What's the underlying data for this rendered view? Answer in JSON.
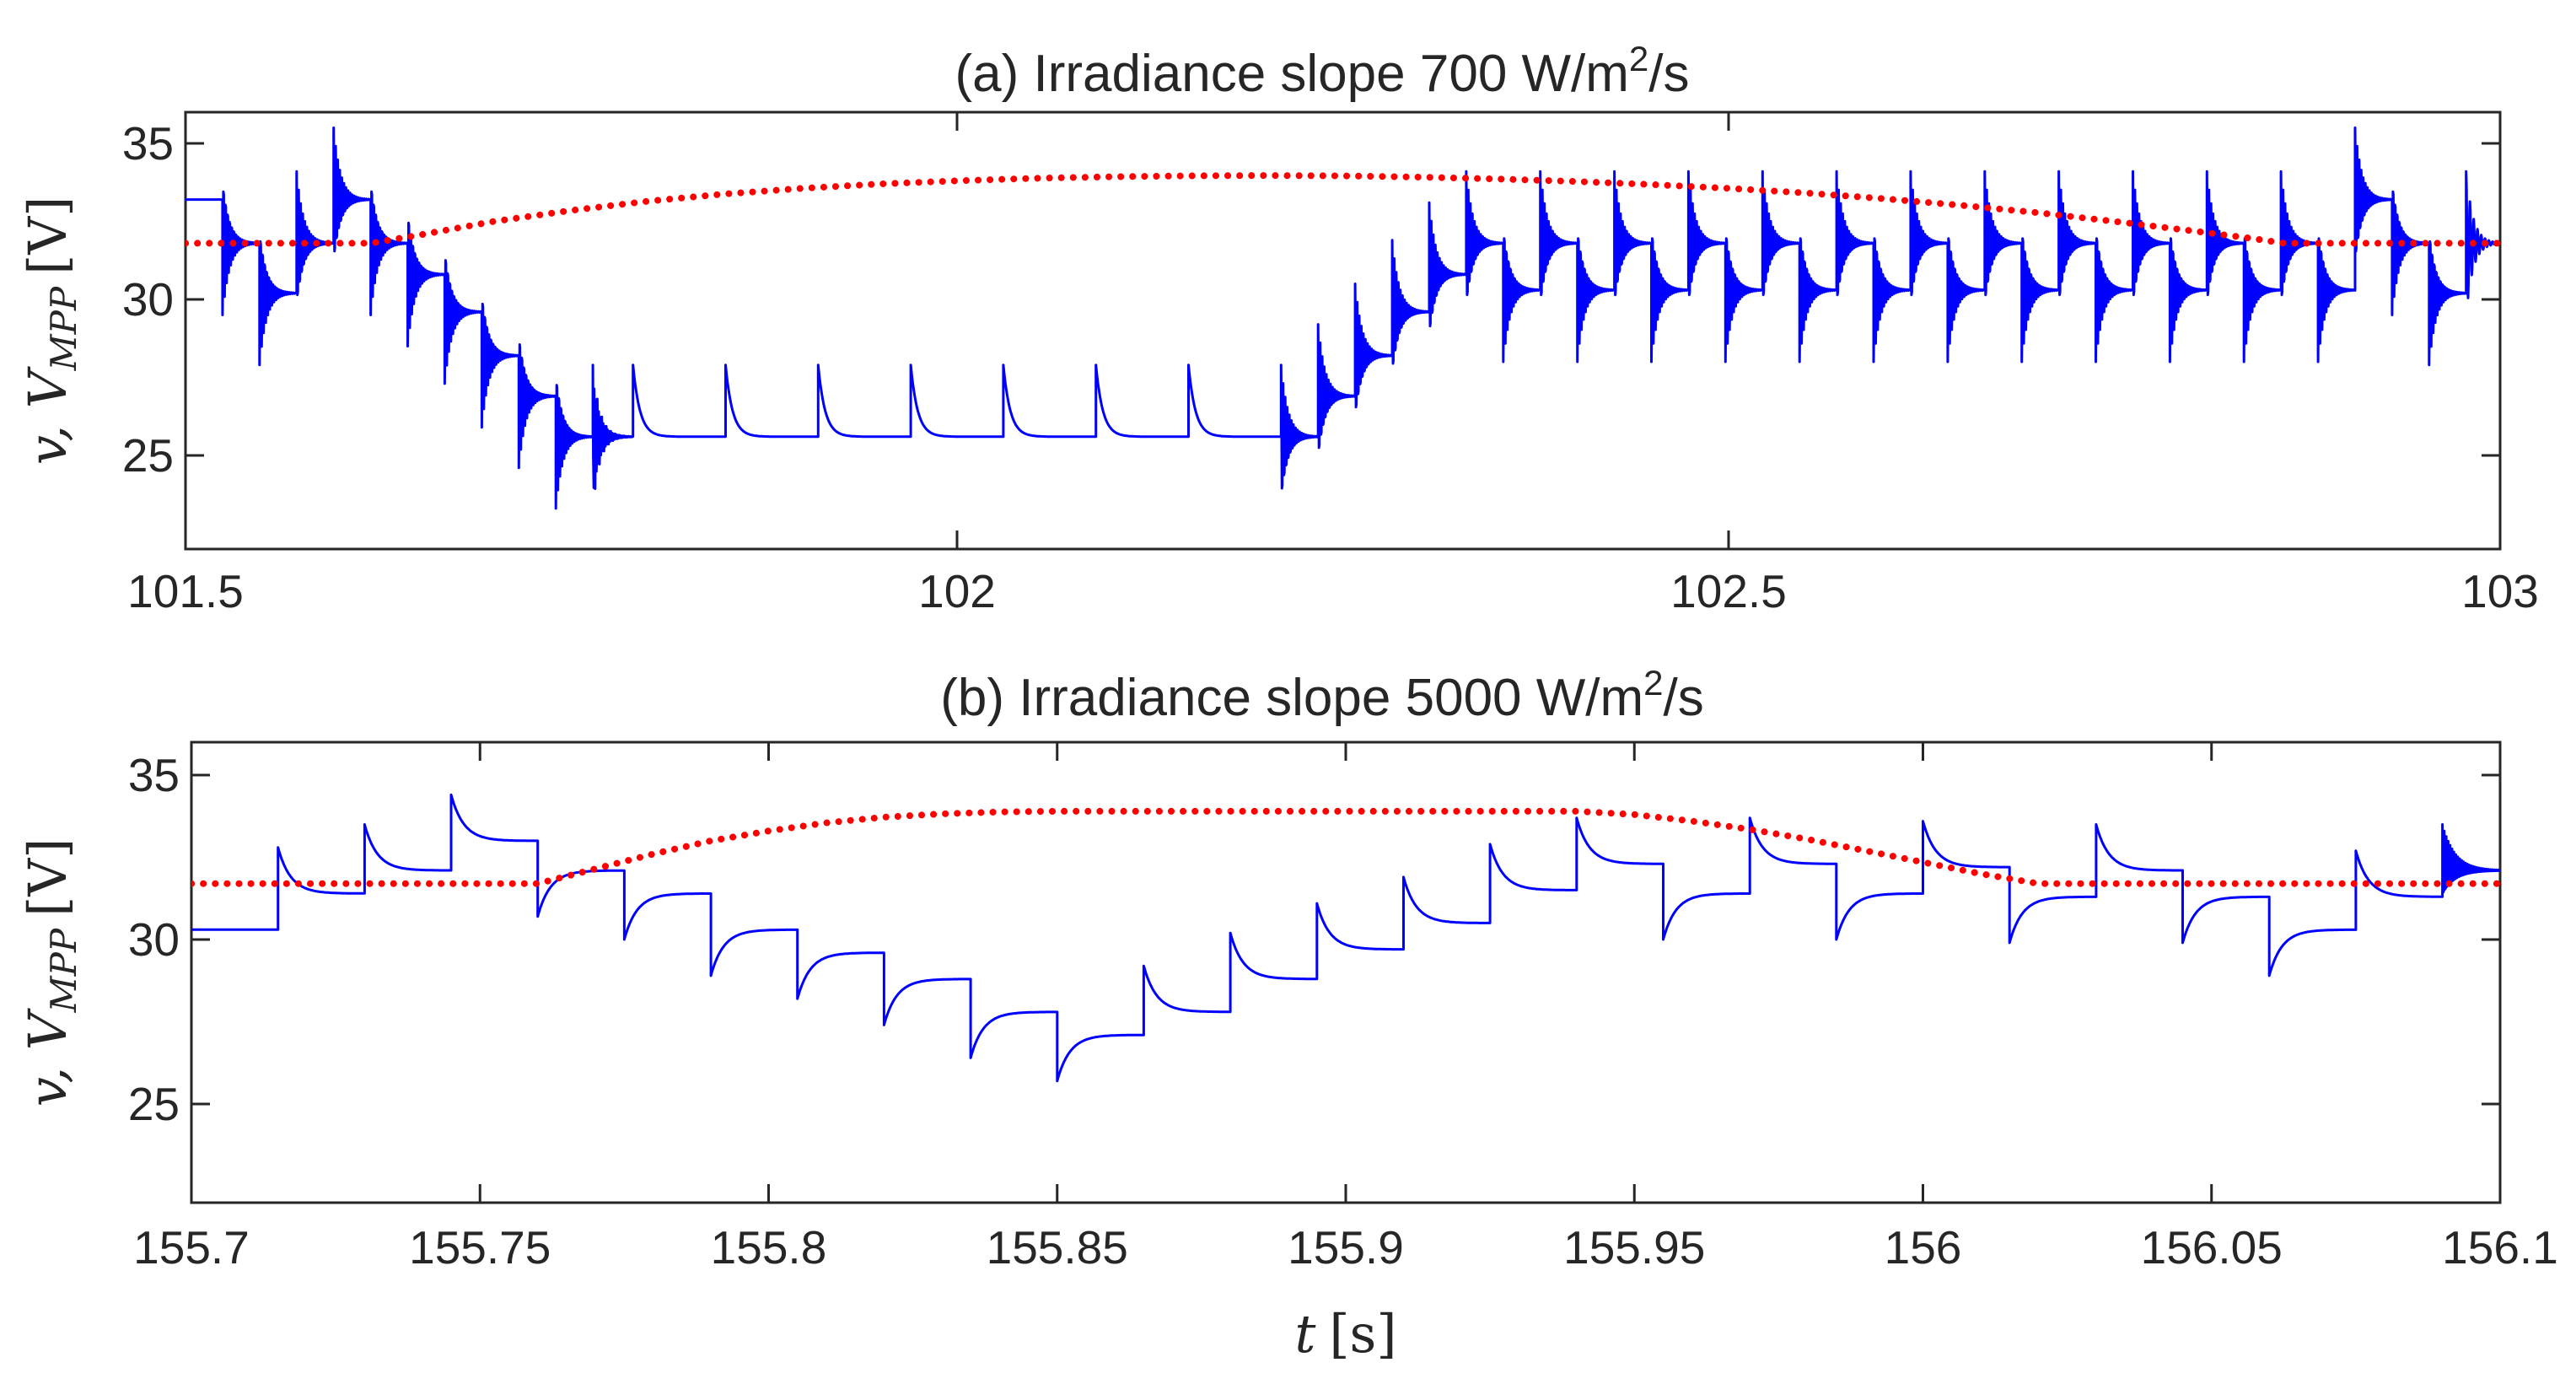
{
  "chart_data": [
    {
      "type": "line",
      "title": "(a) Irradiance slope 700 W/m²/s",
      "title_main": "(a) Irradiance slope 700 W/m",
      "title_sup": "2",
      "title_tail": "/s",
      "ylabel": {
        "var": "v, V",
        "sub": "MPP",
        "unit": "[V]"
      },
      "xlabel": "",
      "xlim": [
        101.5,
        103.0
      ],
      "ylim": [
        22,
        36
      ],
      "xticks": [
        101.5,
        102,
        102.5,
        103
      ],
      "xtick_labels": [
        "101.5",
        "102",
        "102.5",
        "103"
      ],
      "yticks": [
        25,
        30,
        35
      ],
      "ytick_labels": [
        "25",
        "30",
        "35"
      ],
      "grid": false,
      "legend": "none",
      "series": [
        {
          "role": "measured voltage",
          "color": "#0000ff",
          "style": "solid",
          "steps": {
            "t": [
              101.5,
              101.524,
              101.548,
              101.572,
              101.596,
              101.62,
              101.644,
              101.668,
              101.692,
              101.716,
              101.74,
              101.764,
              101.79,
              101.85,
              101.91,
              101.97,
              102.03,
              102.09,
              102.15,
              102.21,
              102.234,
              102.258,
              102.282,
              102.306,
              102.33,
              102.354,
              102.378,
              102.402,
              102.426,
              102.45,
              102.474,
              102.498,
              102.522,
              102.546,
              102.57,
              102.594,
              102.618,
              102.642,
              102.666,
              102.69,
              102.714,
              102.738,
              102.762,
              102.786,
              102.81,
              102.834,
              102.858,
              102.882,
              102.906,
              102.93,
              102.954,
              102.978
            ],
            "v": [
              33.2,
              31.8,
              30.2,
              31.8,
              33.2,
              31.8,
              30.8,
              29.6,
              28.2,
              26.9,
              25.6,
              25.6,
              25.6,
              25.6,
              25.6,
              25.6,
              25.6,
              25.6,
              25.6,
              25.6,
              26.9,
              28.2,
              29.6,
              30.8,
              31.8,
              30.3,
              31.8,
              30.3,
              31.8,
              30.3,
              31.8,
              30.3,
              31.8,
              30.3,
              31.8,
              30.3,
              31.8,
              30.3,
              31.8,
              30.3,
              31.8,
              30.3,
              31.8,
              30.3,
              31.8,
              30.3,
              31.8,
              30.3,
              33.2,
              31.8,
              30.2,
              31.8
            ]
          }
        },
        {
          "role": "MPP voltage",
          "color": "#ff0000",
          "style": "dotted",
          "x": [
            101.5,
            101.52,
            101.54,
            101.56,
            101.58,
            101.6,
            101.62,
            101.65,
            101.7,
            101.75,
            101.8,
            101.85,
            101.9,
            101.95,
            102.0,
            102.05,
            102.1,
            102.15,
            102.2,
            102.25,
            102.3,
            102.35,
            102.4,
            102.45,
            102.5,
            102.55,
            102.6,
            102.65,
            102.7,
            102.75,
            102.8,
            102.84,
            102.86,
            102.88,
            102.9,
            102.92,
            102.94,
            102.96,
            102.98,
            103.0
          ],
          "y": [
            31.8,
            31.8,
            31.8,
            31.8,
            31.8,
            31.8,
            31.8,
            32.05,
            32.5,
            32.85,
            33.15,
            33.38,
            33.56,
            33.7,
            33.8,
            33.88,
            33.93,
            33.96,
            33.97,
            33.96,
            33.92,
            33.86,
            33.78,
            33.68,
            33.56,
            33.41,
            33.23,
            33.02,
            32.78,
            32.5,
            32.2,
            31.95,
            31.8,
            31.8,
            31.8,
            31.8,
            31.8,
            31.8,
            31.8,
            31.8
          ]
        }
      ]
    },
    {
      "type": "line",
      "title": "(b) Irradiance slope 5000 W/m²/s",
      "title_main": "(b) Irradiance slope 5000 W/m",
      "title_sup": "2",
      "title_tail": "/s",
      "ylabel": {
        "var": "v, V",
        "sub": "MPP",
        "unit": "[V]"
      },
      "xlabel": {
        "var": "t",
        "unit": "[s]"
      },
      "xlim": [
        155.7,
        156.1
      ],
      "ylim": [
        22,
        36
      ],
      "xticks": [
        155.7,
        155.75,
        155.8,
        155.85,
        155.9,
        155.95,
        156,
        156.05,
        156.1
      ],
      "xtick_labels": [
        "155.7",
        "155.75",
        "155.8",
        "155.85",
        "155.9",
        "155.95",
        "156",
        "156.05",
        "156.1"
      ],
      "yticks": [
        25,
        30,
        35
      ],
      "ytick_labels": [
        "25",
        "30",
        "35"
      ],
      "grid": false,
      "legend": "none",
      "series": [
        {
          "role": "measured voltage",
          "color": "#0000ff",
          "style": "solid",
          "steps": {
            "t": [
              155.7,
              155.715,
              155.73,
              155.745,
              155.76,
              155.775,
              155.79,
              155.805,
              155.82,
              155.835,
              155.85,
              155.865,
              155.88,
              155.895,
              155.91,
              155.925,
              155.94,
              155.955,
              155.97,
              155.985,
              156.0,
              156.015,
              156.03,
              156.045,
              156.06,
              156.075,
              156.09
            ],
            "v": [
              30.3,
              31.4,
              32.1,
              33.0,
              32.1,
              31.4,
              30.3,
              29.6,
              28.8,
              27.8,
              27.1,
              27.8,
              28.8,
              29.7,
              30.5,
              31.5,
              32.3,
              31.4,
              32.3,
              31.4,
              32.2,
              31.3,
              32.1,
              31.3,
              30.3,
              31.3,
              32.1
            ]
          }
        },
        {
          "role": "MPP voltage",
          "color": "#ff0000",
          "style": "dotted",
          "x": [
            155.7,
            155.72,
            155.74,
            155.76,
            155.77,
            155.78,
            155.79,
            155.8,
            155.81,
            155.82,
            155.83,
            155.84,
            155.85,
            155.86,
            155.88,
            155.9,
            155.92,
            155.94,
            155.95,
            155.96,
            155.97,
            155.98,
            155.99,
            156.0,
            156.01,
            156.02,
            156.03,
            156.05,
            156.07,
            156.1
          ],
          "y": [
            31.7,
            31.7,
            31.7,
            31.7,
            32.15,
            32.6,
            33.0,
            33.3,
            33.55,
            33.72,
            33.82,
            33.88,
            33.9,
            33.9,
            33.9,
            33.9,
            33.9,
            33.9,
            33.8,
            33.6,
            33.35,
            33.05,
            32.7,
            32.35,
            32.0,
            31.7,
            31.7,
            31.7,
            31.7,
            31.7
          ]
        }
      ]
    }
  ]
}
